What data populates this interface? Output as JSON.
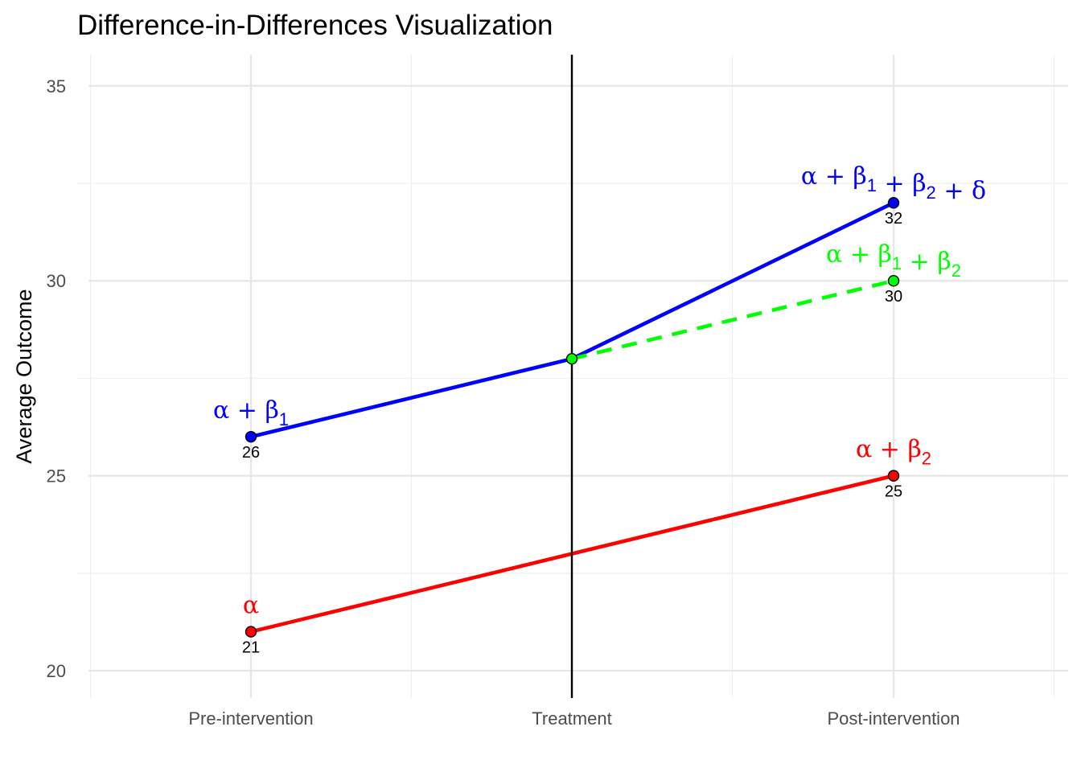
{
  "chart_data": {
    "type": "line",
    "title": "Difference-in-Differences Visualization",
    "xlabel": "",
    "ylabel": "Average Outcome",
    "categories": [
      "Pre-intervention",
      "Treatment",
      "Post-intervention"
    ],
    "ylim": [
      19.3,
      35.8
    ],
    "yticks": [
      20,
      25,
      30,
      35
    ],
    "grid": true,
    "legend": "none",
    "treatment_line": {
      "category": "Treatment",
      "color": "#000000"
    },
    "series": [
      {
        "id": "control",
        "color": "#ff0000",
        "dash": false,
        "points": [
          {
            "category": "Pre-intervention",
            "value": 21,
            "marker": true,
            "label": "21"
          },
          {
            "category": "Treatment",
            "value": 23,
            "marker": false
          },
          {
            "category": "Post-intervention",
            "value": 25,
            "marker": true,
            "label": "25"
          }
        ]
      },
      {
        "id": "treated",
        "color": "#0000ff",
        "dash": false,
        "points": [
          {
            "category": "Pre-intervention",
            "value": 26,
            "marker": true,
            "label": "26"
          },
          {
            "category": "Treatment",
            "value": 28,
            "marker": false
          },
          {
            "category": "Post-intervention",
            "value": 32,
            "marker": true,
            "label": "32"
          }
        ]
      },
      {
        "id": "counterfactual",
        "color": "#00ff00",
        "dash": true,
        "points": [
          {
            "category": "Treatment",
            "value": 28,
            "marker": true
          },
          {
            "category": "Post-intervention",
            "value": 30,
            "marker": true,
            "label": "30"
          }
        ]
      }
    ],
    "annotations": [
      {
        "category": "Pre-intervention",
        "value": 21,
        "color": "#ff0000",
        "parts": [
          [
            "α",
            ""
          ]
        ]
      },
      {
        "category": "Pre-intervention",
        "value": 26,
        "color": "#0000ff",
        "parts": [
          [
            "α",
            ""
          ],
          [
            " + ",
            ""
          ],
          [
            "β",
            "1"
          ]
        ]
      },
      {
        "category": "Post-intervention",
        "value": 25,
        "color": "#ff0000",
        "parts": [
          [
            "α",
            ""
          ],
          [
            " + ",
            ""
          ],
          [
            "β",
            "2"
          ]
        ]
      },
      {
        "category": "Post-intervention",
        "value": 30,
        "color": "#00ff00",
        "parts": [
          [
            "α",
            ""
          ],
          [
            " + ",
            ""
          ],
          [
            "β",
            "1"
          ],
          [
            " + ",
            ""
          ],
          [
            "β",
            "2"
          ]
        ]
      },
      {
        "category": "Post-intervention",
        "value": 32,
        "color": "#0000ff",
        "parts": [
          [
            "α",
            ""
          ],
          [
            " + ",
            ""
          ],
          [
            "β",
            "1"
          ],
          [
            " + ",
            ""
          ],
          [
            "β",
            "2"
          ],
          [
            " + ",
            ""
          ],
          [
            "δ",
            ""
          ]
        ]
      }
    ]
  }
}
